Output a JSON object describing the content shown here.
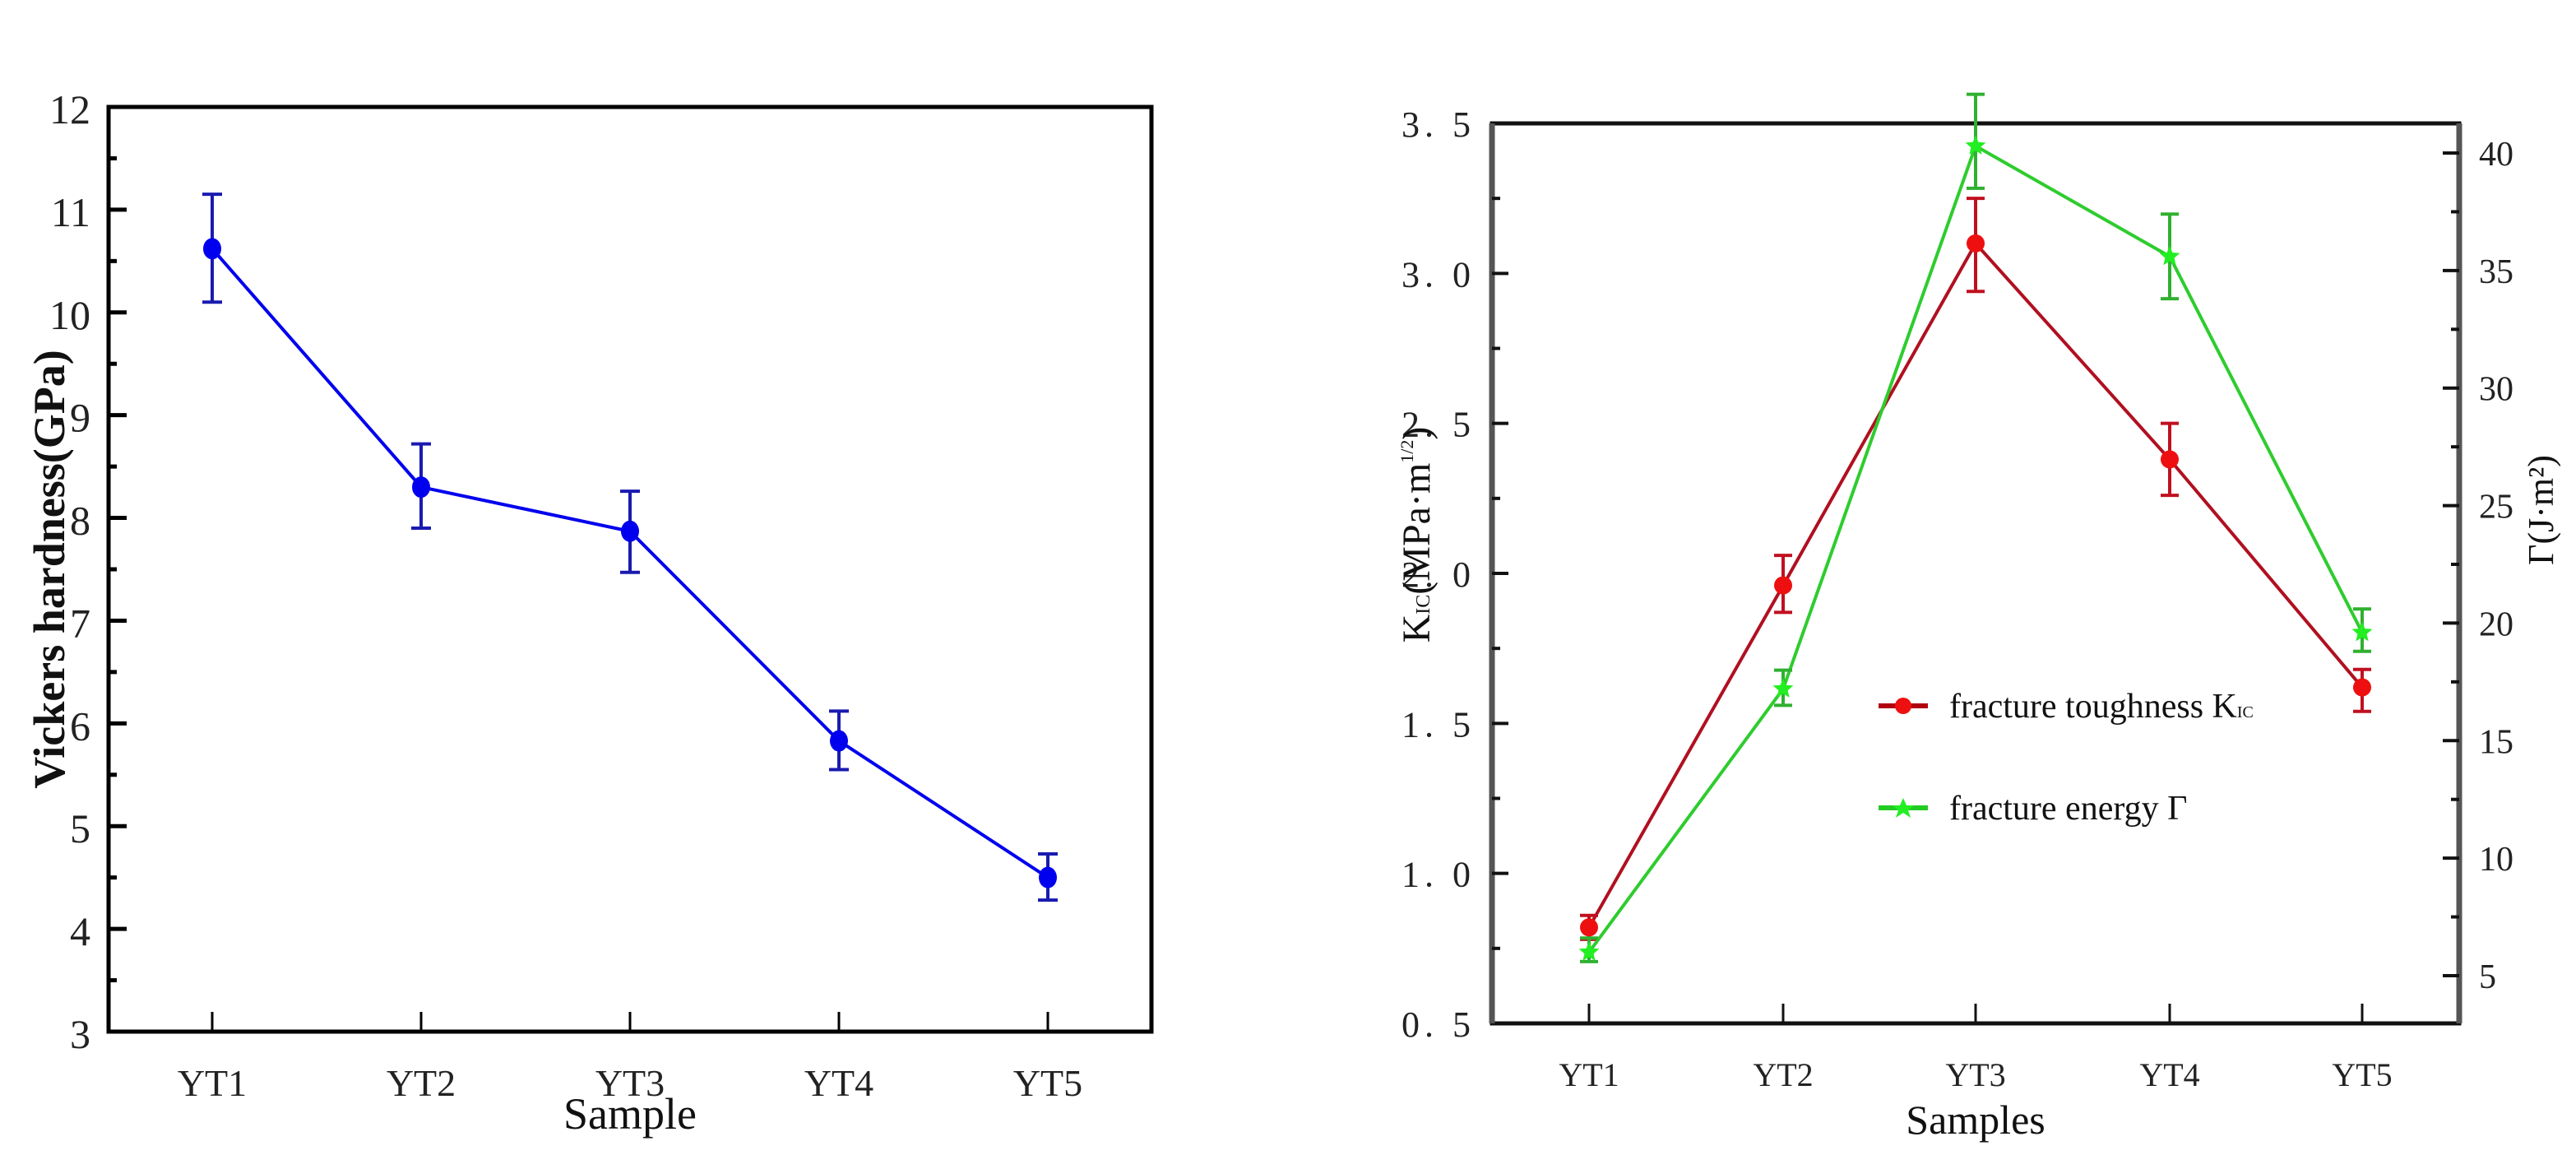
{
  "chart_data": [
    {
      "type": "line",
      "title": "",
      "xlabel": "Sample",
      "ylabel": "Vickers hardness(GPa)",
      "categories": [
        "YT1",
        "YT2",
        "YT3",
        "YT4",
        "YT5"
      ],
      "ylim": [
        3,
        12
      ],
      "yticks": [
        3,
        4,
        5,
        6,
        7,
        8,
        9,
        10,
        11,
        12
      ],
      "grid": false,
      "series": [
        {
          "name": "Vickers hardness",
          "color": "#0000ee",
          "marker": "circle",
          "values": [
            10.62,
            8.3,
            7.87,
            5.83,
            4.5
          ],
          "error_low": [
            10.1,
            7.9,
            7.47,
            5.55,
            4.28
          ],
          "error_high": [
            11.15,
            8.72,
            8.26,
            6.12,
            4.73
          ]
        }
      ]
    },
    {
      "type": "line",
      "title": "",
      "xlabel": "Samples",
      "ylabel": "K_IC(MPa·m^1/2)",
      "ylabel_right": "Γ(J·m²)",
      "categories": [
        "YT1",
        "YT2",
        "YT3",
        "YT4",
        "YT5"
      ],
      "ylim": [
        0.5,
        3.5
      ],
      "yticks": [
        "0.5",
        "1.0",
        "1.5",
        "2.0",
        "2.5",
        "3.0",
        "3.5"
      ],
      "ylim_right": [
        2.6,
        43
      ],
      "yticks_right": [
        "5",
        "10",
        "15",
        "20",
        "25",
        "30",
        "35",
        "40"
      ],
      "grid": false,
      "legend_position": "center-right",
      "series": [
        {
          "name": "fracture toughness K_IC",
          "axis": "left",
          "color": "#e01010",
          "marker": "circle",
          "values": [
            0.82,
            1.96,
            3.1,
            2.38,
            1.62
          ],
          "error_low": [
            0.78,
            1.87,
            2.94,
            2.26,
            1.54
          ],
          "error_high": [
            0.86,
            2.06,
            3.25,
            2.5,
            1.68
          ]
        },
        {
          "name": "fracture energy Γ",
          "axis": "right",
          "color": "#22dd22",
          "marker": "star",
          "values": [
            6.0,
            17.2,
            40.3,
            35.6,
            19.6
          ],
          "error_low": [
            5.6,
            16.5,
            38.5,
            33.8,
            18.8
          ],
          "error_high": [
            6.6,
            18.0,
            42.5,
            37.4,
            20.6
          ]
        }
      ]
    }
  ],
  "left_chart": {
    "ylabel": "Vickers hardness(GPa)",
    "xlabel": "Sample",
    "yticks": [
      "3",
      "4",
      "5",
      "6",
      "7",
      "8",
      "9",
      "10",
      "11",
      "12"
    ],
    "xticks": [
      "YT1",
      "YT2",
      "YT3",
      "YT4",
      "YT5"
    ]
  },
  "right_chart": {
    "ylabel_main": "K",
    "ylabel_sub": "IC",
    "ylabel_rest": "(MPa·m",
    "ylabel_sup": "1/2",
    "ylabel_close": ")",
    "ylabel_right": "Γ(J·m²)",
    "xlabel": "Samples",
    "yticks": [
      "0.5",
      "1.0",
      "1.5",
      "2.0",
      "2.5",
      "3.0",
      "3.5"
    ],
    "yticks_right": [
      "5",
      "10",
      "15",
      "20",
      "25",
      "30",
      "35",
      "40"
    ],
    "xticks": [
      "YT1",
      "YT2",
      "YT3",
      "YT4",
      "YT5"
    ],
    "legend": {
      "toughness_label": "fracture toughness K",
      "toughness_sub": "IC",
      "energy_label": "fracture energy Γ"
    }
  }
}
